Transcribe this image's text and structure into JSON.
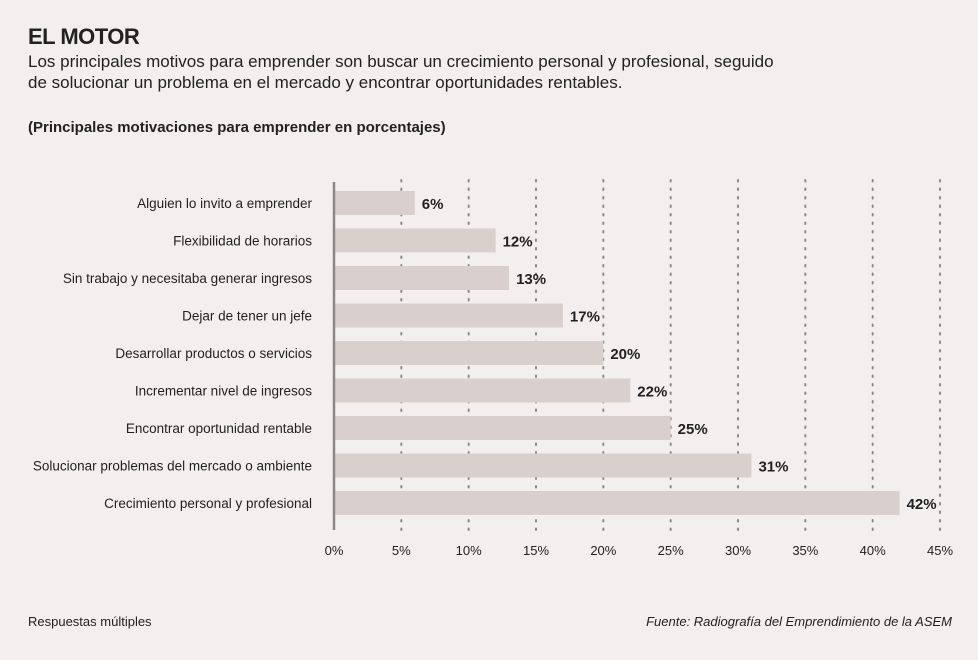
{
  "header": {
    "title": "EL MOTOR",
    "subtitle": "Los principales motivos para emprender son buscar un crecimiento personal y profesional, seguido de solucionar un problema en el mercado y encontrar oportunidades rentables."
  },
  "footer": {
    "note": "Respuestas múltiples",
    "source": "Fuente: Radiografía del Emprendimiento de la ASEM"
  },
  "chart_data": {
    "type": "bar",
    "orientation": "horizontal",
    "title": "(Principales motivaciones para emprender en porcentajes)",
    "categories": [
      "Alguien lo invito a emprender",
      "Flexibilidad de horarios",
      "Sin trabajo y necesitaba generar ingresos",
      "Dejar de tener un jefe",
      "Desarrollar productos o servicios",
      "Incrementar nivel de ingresos",
      "Encontrar oportunidad rentable",
      "Solucionar problemas del mercado o ambiente",
      "Crecimiento personal y profesional"
    ],
    "values": [
      6,
      12,
      13,
      17,
      20,
      22,
      25,
      31,
      42
    ],
    "data_labels": [
      "6%",
      "12%",
      "13%",
      "17%",
      "20%",
      "22%",
      "25%",
      "31%",
      "42%"
    ],
    "xlim": [
      0,
      45
    ],
    "x_ticks": [
      0,
      5,
      10,
      15,
      20,
      25,
      30,
      35,
      40,
      45
    ],
    "x_tick_labels": [
      "0%",
      "5%",
      "10%",
      "15%",
      "20%",
      "25%",
      "30%",
      "35%",
      "40%",
      "45%"
    ],
    "grid": "vertical dotted",
    "colors": {
      "bar": "#d9d0ce",
      "grid": "#8a8a8a",
      "axis": "#888888"
    }
  }
}
